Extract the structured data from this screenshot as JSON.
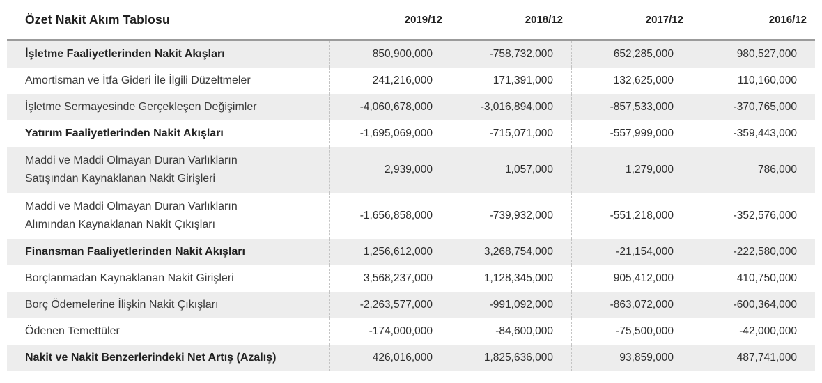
{
  "table": {
    "title": "Özet Nakit Akım Tablosu",
    "columns": [
      "2019/12",
      "2018/12",
      "2017/12",
      "2016/12"
    ],
    "colors": {
      "stripe_bg": "#EDEDED",
      "header_border": "#9B9B9B",
      "column_dash": "#C4C4C4",
      "text": "#3A3A3A"
    },
    "rows": [
      {
        "label": "İşletme Faaliyetlerinden Nakit Akışları",
        "values": [
          "850,900,000",
          "-758,732,000",
          "652,285,000",
          "980,527,000"
        ]
      },
      {
        "label": "Amortisman ve İtfa Gideri İle İlgili Düzeltmeler",
        "values": [
          "241,216,000",
          "171,391,000",
          "132,625,000",
          "110,160,000"
        ]
      },
      {
        "label": "İşletme Sermayesinde Gerçekleşen Değişimler",
        "values": [
          "-4,060,678,000",
          "-3,016,894,000",
          "-857,533,000",
          "-370,765,000"
        ]
      },
      {
        "label": "Yatırım Faaliyetlerinden Nakit Akışları",
        "values": [
          "-1,695,069,000",
          "-715,071,000",
          "-557,999,000",
          "-359,443,000"
        ]
      },
      {
        "label": "Maddi ve Maddi Olmayan Duran Varlıkların\nSatışından Kaynaklanan Nakit Girişleri",
        "values": [
          "2,939,000",
          "1,057,000",
          "1,279,000",
          "786,000"
        ]
      },
      {
        "label": "Maddi ve Maddi Olmayan Duran Varlıkların\nAlımından Kaynaklanan Nakit Çıkışları",
        "values": [
          "-1,656,858,000",
          "-739,932,000",
          "-551,218,000",
          "-352,576,000"
        ]
      },
      {
        "label": "Finansman Faaliyetlerinden Nakit Akışları",
        "values": [
          "1,256,612,000",
          "3,268,754,000",
          "-21,154,000",
          "-222,580,000"
        ]
      },
      {
        "label": "Borçlanmadan Kaynaklanan Nakit Girişleri",
        "values": [
          "3,568,237,000",
          "1,128,345,000",
          "905,412,000",
          "410,750,000"
        ]
      },
      {
        "label": "Borç Ödemelerine İlişkin Nakit Çıkışları",
        "values": [
          "-2,263,577,000",
          "-991,092,000",
          "-863,072,000",
          "-600,364,000"
        ]
      },
      {
        "label": "Ödenen Temettüler",
        "values": [
          "-174,000,000",
          "-84,600,000",
          "-75,500,000",
          "-42,000,000"
        ]
      },
      {
        "label": "Nakit ve Nakit Benzerlerindeki Net Artış (Azalış)",
        "values": [
          "426,016,000",
          "1,825,636,000",
          "93,859,000",
          "487,741,000"
        ]
      }
    ]
  },
  "chart_data": {
    "type": "table",
    "title": "Özet Nakit Akım Tablosu",
    "columns": [
      "2019/12",
      "2018/12",
      "2017/12",
      "2016/12"
    ],
    "rows": [
      {
        "label": "İşletme Faaliyetlerinden Nakit Akışları",
        "emphasis": true,
        "values": [
          850900000,
          -758732000,
          652285000,
          980527000
        ]
      },
      {
        "label": "Amortisman ve İtfa Gideri İle İlgili Düzeltmeler",
        "emphasis": false,
        "values": [
          241216000,
          171391000,
          132625000,
          110160000
        ]
      },
      {
        "label": "İşletme Sermayesinde Gerçekleşen Değişimler",
        "emphasis": false,
        "values": [
          -4060678000,
          -3016894000,
          -857533000,
          -370765000
        ]
      },
      {
        "label": "Yatırım Faaliyetlerinden Nakit Akışları",
        "emphasis": true,
        "values": [
          -1695069000,
          -715071000,
          -557999000,
          -359443000
        ]
      },
      {
        "label": "Maddi ve Maddi Olmayan Duran Varlıkların Satışından Kaynaklanan Nakit Girişleri",
        "emphasis": false,
        "values": [
          2939000,
          1057000,
          1279000,
          786000
        ]
      },
      {
        "label": "Maddi ve Maddi Olmayan Duran Varlıkların Alımından Kaynaklanan Nakit Çıkışları",
        "emphasis": false,
        "values": [
          -1656858000,
          -739932000,
          -551218000,
          -352576000
        ]
      },
      {
        "label": "Finansman Faaliyetlerinden Nakit Akışları",
        "emphasis": true,
        "values": [
          1256612000,
          3268754000,
          -21154000,
          -222580000
        ]
      },
      {
        "label": "Borçlanmadan Kaynaklanan Nakit Girişleri",
        "emphasis": false,
        "values": [
          3568237000,
          1128345000,
          905412000,
          410750000
        ]
      },
      {
        "label": "Borç Ödemelerine İlişkin Nakit Çıkışları",
        "emphasis": false,
        "values": [
          -2263577000,
          -991092000,
          -863072000,
          -600364000
        ]
      },
      {
        "label": "Ödenen Temettüler",
        "emphasis": false,
        "values": [
          -174000000,
          -84600000,
          -75500000,
          -42000000
        ]
      },
      {
        "label": "Nakit ve Nakit Benzerlerindeki Net Artış (Azalış)",
        "emphasis": true,
        "values": [
          426016000,
          1825636000,
          93859000,
          487741000
        ]
      }
    ]
  }
}
